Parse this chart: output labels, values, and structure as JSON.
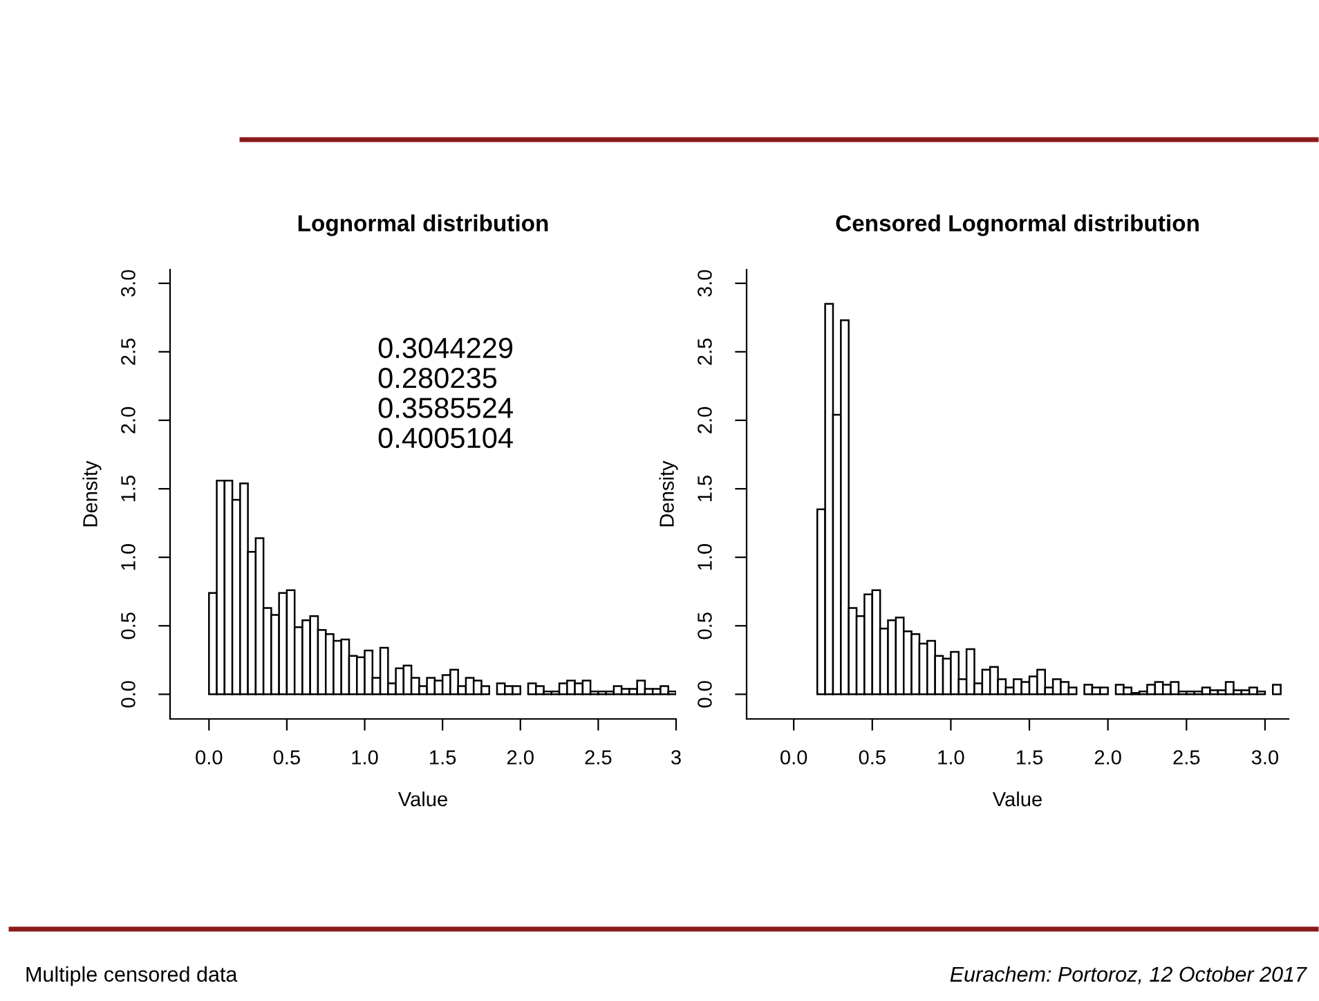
{
  "chart_data": [
    {
      "type": "histogram",
      "title": "Lognormal distribution",
      "xlabel": "Value",
      "ylabel": "Density",
      "color": "#ffffff",
      "bins": [
        0,
        0.05,
        0.1,
        0.15,
        0.2,
        0.25,
        0.3,
        0.35,
        0.4,
        0.45,
        0.5,
        0.55,
        0.6,
        0.65,
        0.7,
        0.75,
        0.8,
        0.85,
        0.9,
        0.95,
        1.0,
        1.05,
        1.1,
        1.15,
        1.2,
        1.25,
        1.3,
        1.35,
        1.4,
        1.45,
        1.5,
        1.55,
        1.6,
        1.65,
        1.7,
        1.75,
        1.8,
        1.85,
        1.9,
        1.95,
        2.0,
        2.05,
        2.1,
        2.15,
        2.2,
        2.25,
        2.3,
        2.35,
        2.4,
        2.45,
        2.5,
        2.55,
        2.6,
        2.65,
        2.7,
        2.75,
        2.8,
        2.85,
        2.9,
        2.95,
        3.0
      ],
      "values": [
        0.74,
        1.56,
        1.56,
        1.42,
        1.54,
        1.04,
        1.14,
        0.63,
        0.58,
        0.74,
        0.76,
        0.49,
        0.54,
        0.57,
        0.47,
        0.44,
        0.39,
        0.4,
        0.28,
        0.27,
        0.32,
        0.12,
        0.34,
        0.08,
        0.19,
        0.21,
        0.12,
        0.06,
        0.12,
        0.1,
        0.14,
        0.18,
        0.06,
        0.12,
        0.1,
        0.06,
        0,
        0.08,
        0.06,
        0.06,
        0,
        0.08,
        0.06,
        0.02,
        0.02,
        0.08,
        0.1,
        0.08,
        0.1,
        0.02,
        0.02,
        0.02,
        0.06,
        0.04,
        0.04,
        0.1,
        0.04,
        0.04,
        0.06,
        0.02
      ],
      "xlim": [
        -0.25,
        3.0
      ],
      "ylim": [
        -0.18,
        3.1
      ],
      "xticks": [
        {
          "value": 0,
          "label": "0.0"
        },
        {
          "value": 0.5,
          "label": "0.5"
        },
        {
          "value": 1,
          "label": "1.0"
        },
        {
          "value": 1.5,
          "label": "1.5"
        },
        {
          "value": 2,
          "label": "2.0"
        },
        {
          "value": 2.5,
          "label": "2.5"
        },
        3
      ],
      "yticks": [
        {
          "value": 0,
          "label": "0.0"
        },
        {
          "value": 0.5,
          "label": "0.5"
        },
        {
          "value": 1,
          "label": "1.0"
        },
        {
          "value": 1.5,
          "label": "1.5"
        },
        {
          "value": 2,
          "label": "2.0"
        },
        {
          "value": 2.5,
          "label": "2.5"
        },
        {
          "value": 3,
          "label": "3.0"
        }
      ],
      "grid": false,
      "annotations": [
        "0.3044229\n0.280235\n0.3585524\n0.4005104",
        "Multiple censored data"
      ]
    },
    {
      "type": "histogram",
      "title": "Censored Lognormal distribution",
      "xlabel": "Value",
      "ylabel": "Density",
      "color": "#ffffff",
      "bins": [
        0.15,
        0.2,
        0.25,
        0.3,
        0.35,
        0.4,
        0.45,
        0.5,
        0.55,
        0.6,
        0.65,
        0.7,
        0.75,
        0.8,
        0.85,
        0.9,
        0.95,
        1.0,
        1.05,
        1.1,
        1.15,
        1.2,
        1.25,
        1.3,
        1.35,
        1.4,
        1.45,
        1.5,
        1.55,
        1.6,
        1.65,
        1.7,
        1.75,
        1.8,
        1.85,
        1.9,
        1.95,
        2.0,
        2.05,
        2.1,
        2.15,
        2.2,
        2.25,
        2.3,
        2.35,
        2.4,
        2.45,
        2.5,
        2.55,
        2.6,
        2.65,
        2.7,
        2.75,
        2.8,
        2.85,
        2.9,
        2.95,
        3.0,
        3.05,
        3.1
      ],
      "values": [
        1.35,
        2.85,
        2.04,
        2.73,
        0.63,
        0.57,
        0.73,
        0.76,
        0.48,
        0.54,
        0.56,
        0.46,
        0.44,
        0.37,
        0.39,
        0.28,
        0.26,
        0.31,
        0.11,
        0.33,
        0.08,
        0.18,
        0.2,
        0.11,
        0.05,
        0.11,
        0.09,
        0.13,
        0.18,
        0.05,
        0.11,
        0.09,
        0.05,
        0,
        0.07,
        0.05,
        0.05,
        0,
        0.07,
        0.05,
        0.01,
        0.02,
        0.07,
        0.09,
        0.07,
        0.09,
        0.02,
        0.02,
        0.02,
        0.05,
        0.03,
        0.03,
        0.09,
        0.03,
        0.03,
        0.05,
        0.02,
        0,
        0.07
      ],
      "xlim": [
        -0.3,
        3.15
      ],
      "ylim": [
        -0.18,
        3.1
      ],
      "xticks": [
        {
          "value": 0,
          "label": "0.0"
        },
        {
          "value": 0.5,
          "label": "0.5"
        },
        {
          "value": 1,
          "label": "1.0"
        },
        {
          "value": 1.5,
          "label": "1.5"
        },
        {
          "value": 2,
          "label": "2.0"
        },
        {
          "value": 2.5,
          "label": "2.5"
        },
        {
          "value": 3,
          "label": "3.0"
        }
      ],
      "yticks": [
        {
          "value": 0,
          "label": "0.0"
        },
        {
          "value": 0.5,
          "label": "0.5"
        },
        {
          "value": 1,
          "label": "1.0"
        },
        {
          "value": 1.5,
          "label": "1.5"
        },
        {
          "value": 2,
          "label": "2.0"
        },
        {
          "value": 2.5,
          "label": "2.5"
        },
        {
          "value": 3,
          "label": "3.0"
        }
      ],
      "grid": false,
      "annotations": [
        "Eurachem: Portoroz, 12 October 2017"
      ]
    }
  ]
}
